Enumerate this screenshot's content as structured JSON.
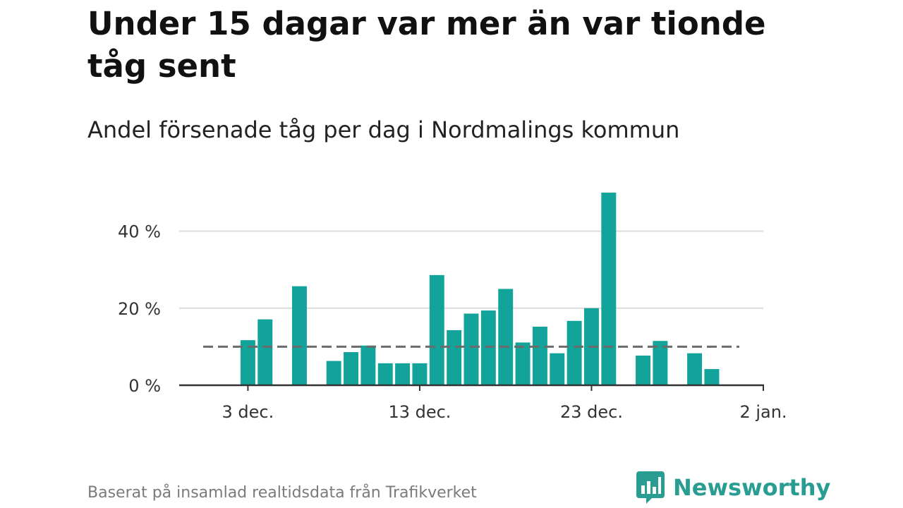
{
  "title": "Under 15 dagar var mer än var tionde tåg sent",
  "subtitle": "Andel försenade tåg per dag i Nordmalings kommun",
  "source": "Baserat på insamlad realtidsdata från Trafikverket",
  "brand": {
    "name": "Newsworthy",
    "icon": "newsworthy-logo-icon"
  },
  "colors": {
    "bar": "#12a49a",
    "grid": "#dcdcdc",
    "axis": "#333333",
    "reference": "#6b6b6b",
    "brand": "#2a9d93"
  },
  "chart_data": {
    "type": "bar",
    "title": "Under 15 dagar var mer än var tionde tåg sent",
    "subtitle": "Andel försenade tåg per dag i Nordmalings kommun",
    "xlabel": "",
    "ylabel": "",
    "x_ticks": [
      {
        "label": "3 dec.",
        "day": 3
      },
      {
        "label": "13 dec.",
        "day": 13
      },
      {
        "label": "23 dec.",
        "day": 23
      },
      {
        "label": "2 jan.",
        "day": 33
      }
    ],
    "y_ticks": [
      {
        "label": "0 %",
        "value": 0
      },
      {
        "label": "20 %",
        "value": 20
      },
      {
        "label": "40 %",
        "value": 40
      }
    ],
    "xlim": [
      -1,
      33
    ],
    "ylim": [
      0,
      50
    ],
    "reference_line": 10,
    "grid": true,
    "series": [
      {
        "values": [
          {
            "date": "2 dec.",
            "day": 2,
            "value": 0
          },
          {
            "date": "3 dec.",
            "day": 3,
            "value": 11.7
          },
          {
            "date": "4 dec.",
            "day": 4,
            "value": 17.1
          },
          {
            "date": "6 dec.",
            "day": 6,
            "value": 25.7
          },
          {
            "date": "8 dec.",
            "day": 8,
            "value": 6.3
          },
          {
            "date": "9 dec.",
            "day": 9,
            "value": 8.6
          },
          {
            "date": "10 dec.",
            "day": 10,
            "value": 10.3
          },
          {
            "date": "11 dec.",
            "day": 11,
            "value": 5.7
          },
          {
            "date": "12 dec.",
            "day": 12,
            "value": 5.7
          },
          {
            "date": "13 dec.",
            "day": 13,
            "value": 5.7
          },
          {
            "date": "14 dec.",
            "day": 14,
            "value": 28.6
          },
          {
            "date": "15 dec.",
            "day": 15,
            "value": 14.3
          },
          {
            "date": "16 dec.",
            "day": 16,
            "value": 18.6
          },
          {
            "date": "17 dec.",
            "day": 17,
            "value": 19.4
          },
          {
            "date": "18 dec.",
            "day": 18,
            "value": 25.0
          },
          {
            "date": "19 dec.",
            "day": 19,
            "value": 11.1
          },
          {
            "date": "20 dec.",
            "day": 20,
            "value": 15.2
          },
          {
            "date": "21 dec.",
            "day": 21,
            "value": 8.3
          },
          {
            "date": "22 dec.",
            "day": 22,
            "value": 16.7
          },
          {
            "date": "23 dec.",
            "day": 23,
            "value": 20.0
          },
          {
            "date": "24 dec.",
            "day": 24,
            "value": 50.0
          },
          {
            "date": "26 dec.",
            "day": 26,
            "value": 7.7
          },
          {
            "date": "27 dec.",
            "day": 27,
            "value": 11.5
          },
          {
            "date": "29 dec.",
            "day": 29,
            "value": 8.3
          },
          {
            "date": "30 dec.",
            "day": 30,
            "value": 4.2
          }
        ]
      }
    ]
  }
}
